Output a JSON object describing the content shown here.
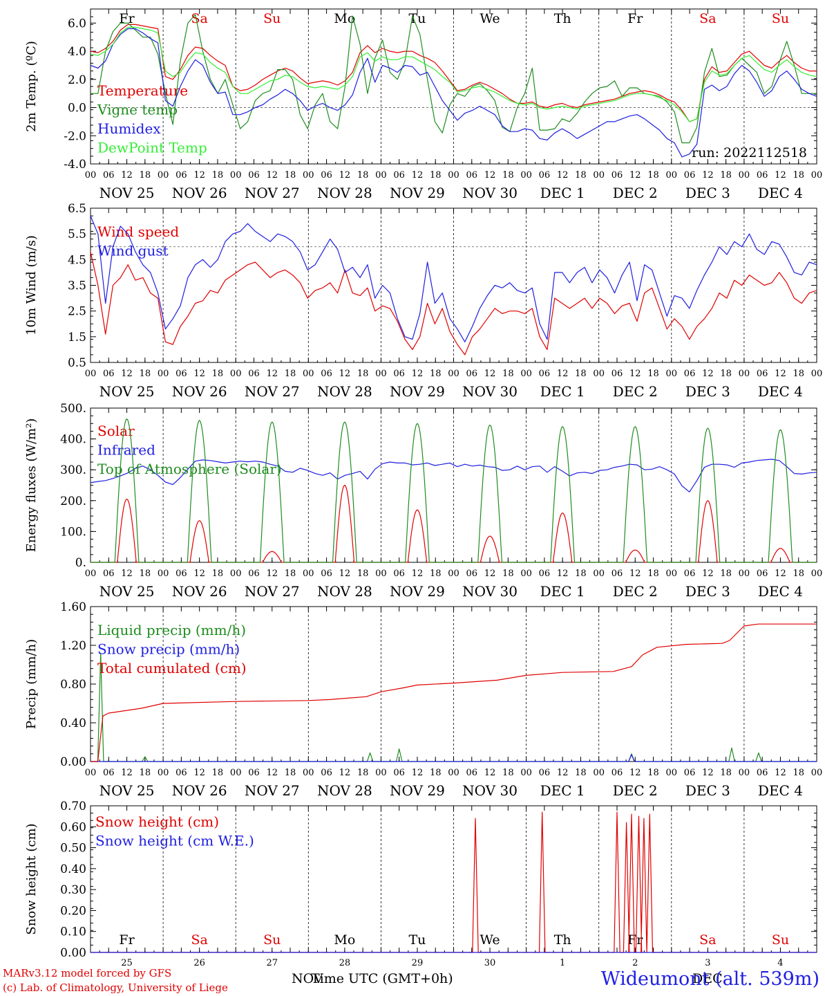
{
  "chart_data": [
    {
      "type": "line",
      "ylabel": "2m Temp. (ºC)",
      "ylim": [
        -4,
        7
      ],
      "yticks": [
        "6.0",
        "4.0",
        "2.0",
        "0.0",
        "-2.0",
        "-4.0"
      ],
      "run_label": "run: 2022112518",
      "weekdays": [
        "Fr",
        "Sa",
        "Su",
        "Mo",
        "Tu",
        "We",
        "Th",
        "Fr",
        "Sa",
        "Su"
      ],
      "series": [
        {
          "name": "Temperature",
          "color": "#e00000",
          "values": [
            4.0,
            3.9,
            4.2,
            4.7,
            5.5,
            5.9,
            5.9,
            5.8,
            5.7,
            5.6,
            2.2,
            2.0,
            2.7,
            3.7,
            4.3,
            4.2,
            3.7,
            3.3,
            3.0,
            1.5,
            1.2,
            1.3,
            1.6,
            2.0,
            2.3,
            2.6,
            2.8,
            2.6,
            2.1,
            1.7,
            1.8,
            1.9,
            1.8,
            1.6,
            1.9,
            2.5,
            3.9,
            4.4,
            3.9,
            4.2,
            4.0,
            3.9,
            4.0,
            4.0,
            3.7,
            3.5,
            3.2,
            2.6,
            1.9,
            1.2,
            1.3,
            1.6,
            1.8,
            1.6,
            1.3,
            1.0,
            0.6,
            0.3,
            0.3,
            0.4,
            0.1,
            0.0,
            0.2,
            0.3,
            0.1,
            0.0,
            0.2,
            0.3,
            0.4,
            0.5,
            0.6,
            0.8,
            1.0,
            1.1,
            1.2,
            1.1,
            0.9,
            0.6,
            0.4,
            -0.2,
            -1.0,
            -0.8,
            2.0,
            2.9,
            2.5,
            2.6,
            3.2,
            3.8,
            4.0,
            3.5,
            3.0,
            2.8,
            3.3,
            3.7,
            3.2,
            2.8,
            2.6,
            2.6
          ]
        },
        {
          "name": "Vigne temp",
          "color": "#1e8c1e",
          "values": [
            1.0,
            1.0,
            4.0,
            5.4,
            6.0,
            6.0,
            5.5,
            5.0,
            5.0,
            3.8,
            1.0,
            -1.2,
            3.3,
            6.0,
            6.6,
            4.0,
            2.0,
            1.0,
            2.0,
            0.2,
            -1.5,
            -1.0,
            0.5,
            1.0,
            1.2,
            2.7,
            2.7,
            2.0,
            -0.5,
            -1.5,
            0.2,
            1.0,
            -1.0,
            -1.5,
            1.5,
            6.5,
            4.5,
            1.0,
            3.5,
            4.8,
            2.5,
            2.0,
            3.3,
            6.5,
            5.2,
            2.0,
            -1.0,
            -1.8,
            0.2,
            1.0,
            0.8,
            1.5,
            1.7,
            1.2,
            0.5,
            -1.4,
            -1.7,
            0.0,
            1.0,
            2.8,
            -1.6,
            -1.6,
            -1.5,
            -0.8,
            -1.0,
            -0.4,
            0.4,
            1.0,
            1.4,
            1.5,
            1.9,
            0.8,
            1.4,
            1.4,
            1.0,
            0.9,
            0.8,
            0.4,
            -0.3,
            -2.5,
            -2.5,
            -1.4,
            2.5,
            4.2,
            2.2,
            2.3,
            3.0,
            3.5,
            3.0,
            2.5,
            1.0,
            1.5,
            3.2,
            4.7,
            3.0,
            1.0,
            1.0,
            1.0
          ]
        },
        {
          "name": "Humidex",
          "color": "#1e1ee0",
          "values": [
            3.0,
            2.8,
            3.3,
            4.5,
            5.2,
            5.6,
            5.6,
            5.3,
            4.9,
            4.6,
            0.5,
            0.1,
            1.5,
            2.6,
            3.4,
            3.0,
            1.8,
            1.0,
            1.1,
            -0.5,
            -0.5,
            -0.3,
            0.0,
            0.2,
            0.6,
            0.9,
            1.3,
            1.0,
            0.5,
            -0.2,
            0.1,
            0.3,
            0.0,
            -0.2,
            0.2,
            0.9,
            2.5,
            3.5,
            1.8,
            3.0,
            2.8,
            2.5,
            3.0,
            2.9,
            2.3,
            2.5,
            1.5,
            0.5,
            -0.2,
            -0.9,
            -0.4,
            -0.2,
            0.1,
            -0.2,
            -0.5,
            -1.3,
            -1.7,
            -1.7,
            -1.5,
            -1.6,
            -2.2,
            -2.3,
            -1.8,
            -1.5,
            -1.8,
            -2.2,
            -1.9,
            -1.6,
            -1.3,
            -1.0,
            -1.0,
            -0.8,
            -0.6,
            -0.5,
            -0.8,
            -1.2,
            -1.6,
            -2.2,
            -2.5,
            -3.5,
            -3.3,
            -2.6,
            1.3,
            1.6,
            1.2,
            1.5,
            2.4,
            3.0,
            2.6,
            1.8,
            0.8,
            1.2,
            2.2,
            2.6,
            2.0,
            1.3,
            1.0,
            0.8
          ]
        },
        {
          "name": "DewPoint Temp",
          "color": "#33ee33",
          "values": [
            3.8,
            3.7,
            4.0,
            4.5,
            5.3,
            5.7,
            5.7,
            5.6,
            5.5,
            5.3,
            2.6,
            2.2,
            2.5,
            3.3,
            3.9,
            3.8,
            3.2,
            2.8,
            2.5,
            1.5,
            1.0,
            1.0,
            1.3,
            1.6,
            1.9,
            2.0,
            2.3,
            2.2,
            1.8,
            1.5,
            1.4,
            1.5,
            1.4,
            1.3,
            1.6,
            2.2,
            3.6,
            3.9,
            3.3,
            3.6,
            3.4,
            3.4,
            3.6,
            3.6,
            3.3,
            3.0,
            2.7,
            2.2,
            1.8,
            1.1,
            1.2,
            1.4,
            1.5,
            1.3,
            1.1,
            0.8,
            0.5,
            0.3,
            0.2,
            0.3,
            0.0,
            -0.1,
            0.0,
            0.1,
            0.0,
            -0.1,
            0.1,
            0.2,
            0.3,
            0.4,
            0.5,
            0.7,
            0.9,
            1.0,
            1.0,
            0.9,
            0.7,
            0.5,
            0.2,
            -0.3,
            -1.0,
            -0.8,
            1.8,
            2.6,
            2.3,
            2.4,
            3.0,
            3.5,
            3.7,
            3.2,
            2.7,
            2.5,
            3.0,
            3.4,
            2.9,
            2.5,
            2.3,
            2.2
          ]
        }
      ]
    },
    {
      "type": "line",
      "ylabel": "10m Wind (m/s)",
      "ylim": [
        0.5,
        6.5
      ],
      "yticks": [
        "6.5",
        "5.5",
        "4.5",
        "3.5",
        "2.5",
        "1.5",
        "0.5"
      ],
      "series": [
        {
          "name": "Wind speed",
          "color": "#e00000",
          "values": [
            4.8,
            3.5,
            1.6,
            3.5,
            3.8,
            4.3,
            3.7,
            3.8,
            3.2,
            3.0,
            1.3,
            1.2,
            1.9,
            2.3,
            2.8,
            2.9,
            3.3,
            3.2,
            3.7,
            3.9,
            4.1,
            4.3,
            4.4,
            4.1,
            3.8,
            4.0,
            4.1,
            3.9,
            3.6,
            3.0,
            3.3,
            3.4,
            3.6,
            3.2,
            4.1,
            3.2,
            3.1,
            3.4,
            2.5,
            2.7,
            2.6,
            2.1,
            1.4,
            1.0,
            1.5,
            2.8,
            2.0,
            2.6,
            1.7,
            1.2,
            0.8,
            1.5,
            1.8,
            2.2,
            2.6,
            2.4,
            2.5,
            2.5,
            2.4,
            2.6,
            1.5,
            1.0,
            3.0,
            2.8,
            2.6,
            2.8,
            3.0,
            2.6,
            3.0,
            2.8,
            2.4,
            2.7,
            2.8,
            2.1,
            3.2,
            3.4,
            2.6,
            1.8,
            2.2,
            1.9,
            1.4,
            1.9,
            2.2,
            2.6,
            3.2,
            3.0,
            3.7,
            3.5,
            3.9,
            3.7,
            3.5,
            3.6,
            4.0,
            3.6,
            3.0,
            2.8,
            3.2,
            3.3
          ]
        },
        {
          "name": "Wind gust",
          "color": "#1e1ee0",
          "values": [
            6.2,
            5.5,
            2.8,
            5.0,
            5.8,
            5.5,
            4.8,
            4.3,
            4.0,
            3.2,
            1.8,
            2.2,
            2.7,
            3.8,
            4.3,
            4.5,
            4.2,
            4.5,
            5.2,
            5.5,
            5.6,
            5.9,
            5.6,
            5.4,
            5.2,
            5.5,
            5.4,
            5.2,
            4.8,
            4.1,
            4.3,
            4.8,
            5.3,
            4.9,
            4.0,
            4.2,
            3.8,
            4.3,
            3.0,
            3.5,
            3.2,
            2.2,
            1.5,
            1.4,
            2.4,
            4.4,
            2.8,
            3.2,
            2.2,
            1.8,
            1.3,
            1.9,
            2.6,
            3.1,
            3.5,
            3.4,
            3.6,
            3.3,
            3.2,
            3.4,
            2.0,
            1.4,
            4.0,
            4.0,
            3.6,
            4.0,
            4.2,
            3.6,
            4.1,
            3.8,
            3.2,
            3.9,
            4.4,
            2.9,
            4.3,
            4.1,
            3.2,
            2.3,
            3.1,
            3.0,
            2.6,
            3.3,
            3.9,
            4.4,
            5.0,
            4.7,
            5.2,
            5.0,
            5.5,
            4.9,
            4.7,
            5.2,
            5.1,
            4.6,
            4.0,
            3.9,
            4.4,
            4.3
          ]
        }
      ]
    },
    {
      "type": "line",
      "ylabel": "Energy fluxes (W/m²)",
      "ylim": [
        0,
        500
      ],
      "yticks": [
        "500.",
        "400.",
        "300.",
        "200.",
        "100.",
        "0."
      ],
      "series": [
        {
          "name": "Solar",
          "color": "#e00000",
          "peaks": [
            205,
            135,
            35,
            250,
            170,
            85,
            160,
            40,
            200,
            45
          ]
        },
        {
          "name": "Infrared",
          "color": "#1e1ee0",
          "values": [
            258,
            262,
            265,
            272,
            280,
            290,
            305,
            312,
            300,
            282,
            260,
            252,
            275,
            302,
            328,
            332,
            330,
            326,
            322,
            325,
            328,
            326,
            328,
            325,
            318,
            312,
            295,
            292,
            305,
            298,
            288,
            282,
            290,
            270,
            282,
            288,
            295,
            270,
            302,
            320,
            325,
            322,
            322,
            316,
            318,
            322,
            314,
            318,
            322,
            310,
            318,
            312,
            315,
            310,
            308,
            298,
            300,
            312,
            300,
            310,
            312,
            292,
            310,
            296,
            280,
            290,
            292,
            288,
            298,
            300,
            308,
            312,
            318,
            316,
            300,
            302,
            310,
            300,
            286,
            248,
            228,
            265,
            308,
            318,
            318,
            316,
            308,
            322,
            325,
            330,
            332,
            334,
            330,
            310,
            288,
            286,
            290,
            292
          ]
        },
        {
          "name": "Top of Atmosphere (Solar)",
          "color": "#1e8c1e",
          "peaks": [
            465,
            460,
            455,
            455,
            450,
            445,
            440,
            440,
            435,
            430
          ]
        }
      ]
    },
    {
      "type": "line",
      "ylabel": "Precip (mm/h)",
      "ylim": [
        0,
        1.6
      ],
      "yticks": [
        "1.60",
        "1.20",
        "0.80",
        "0.40",
        "0.00"
      ],
      "series": [
        {
          "name": "Liquid precip (mm/h)",
          "color": "#1e8c1e",
          "spikes": [
            [
              0.14,
              1.12
            ],
            [
              0.75,
              0.05
            ],
            [
              3.85,
              0.09
            ],
            [
              4.25,
              0.13
            ],
            [
              7.45,
              0.08
            ],
            [
              8.83,
              0.14
            ],
            [
              9.2,
              0.09
            ]
          ]
        },
        {
          "name": "Snow precip (mm/h)",
          "color": "#1e1ee0",
          "spikes": [
            [
              7.45,
              0.07
            ]
          ]
        },
        {
          "name": "Total cumulated (cm)",
          "color": "#e00000",
          "points": [
            [
              0,
              0
            ],
            [
              0.1,
              0.0
            ],
            [
              0.17,
              0.47
            ],
            [
              0.25,
              0.5
            ],
            [
              0.7,
              0.55
            ],
            [
              1.0,
              0.6
            ],
            [
              2.0,
              0.62
            ],
            [
              3.0,
              0.63
            ],
            [
              3.3,
              0.64
            ],
            [
              3.8,
              0.67
            ],
            [
              4.0,
              0.72
            ],
            [
              4.3,
              0.76
            ],
            [
              4.5,
              0.79
            ],
            [
              5.0,
              0.81
            ],
            [
              5.6,
              0.84
            ],
            [
              6.0,
              0.89
            ],
            [
              6.5,
              0.92
            ],
            [
              7.2,
              0.93
            ],
            [
              7.45,
              0.98
            ],
            [
              7.6,
              1.1
            ],
            [
              7.8,
              1.18
            ],
            [
              8.2,
              1.21
            ],
            [
              8.7,
              1.22
            ],
            [
              8.8,
              1.25
            ],
            [
              9.0,
              1.4
            ],
            [
              9.2,
              1.42
            ],
            [
              10,
              1.42
            ]
          ]
        }
      ]
    },
    {
      "type": "line",
      "ylabel": "Snow height (cm)",
      "ylim": [
        0,
        0.7
      ],
      "yticks": [
        "0.70",
        "0.60",
        "0.50",
        "0.40",
        "0.30",
        "0.20",
        "0.10",
        "0.00"
      ],
      "series": [
        {
          "name": "Snow height (cm)",
          "color": "#e00000",
          "spikes": [
            [
              5.3,
              0.64
            ],
            [
              6.22,
              0.67
            ],
            [
              7.25,
              0.67
            ],
            [
              7.38,
              0.62
            ],
            [
              7.45,
              0.66
            ],
            [
              7.55,
              0.65
            ],
            [
              7.62,
              0.64
            ],
            [
              7.7,
              0.66
            ]
          ]
        },
        {
          "name": "Snow height (cm W.E.)",
          "color": "#1e1ee0",
          "spikes": []
        }
      ],
      "weekdays": [
        "Fr",
        "Sa",
        "Su",
        "Mo",
        "Tu",
        "We",
        "Th",
        "Fr",
        "Sa",
        "Su"
      ],
      "day_numbers": [
        "25",
        "26",
        "27",
        "28",
        "29",
        "30",
        "1",
        "2",
        "3",
        "4"
      ]
    }
  ],
  "x_axis": {
    "hour_ticks": [
      "00",
      "06",
      "12",
      "18"
    ],
    "end_tick": "00",
    "date_labels": [
      "NOV 25",
      "NOV 26",
      "NOV 27",
      "NOV 28",
      "NOV 29",
      "NOV 30",
      "DEC  1",
      "DEC  2",
      "DEC  3",
      "DEC  4"
    ],
    "title": "Time UTC (GMT+0h)",
    "nov": "NOV",
    "dec": "DEC"
  },
  "weekend_color": "#e00000",
  "weekday_color": "#000000",
  "footer": {
    "line1": "MARv3.12 model forced by GFS",
    "line2": "(c) Lab. of Climatology, University of Liege",
    "station": "Wideumont (alt. 539m)"
  }
}
